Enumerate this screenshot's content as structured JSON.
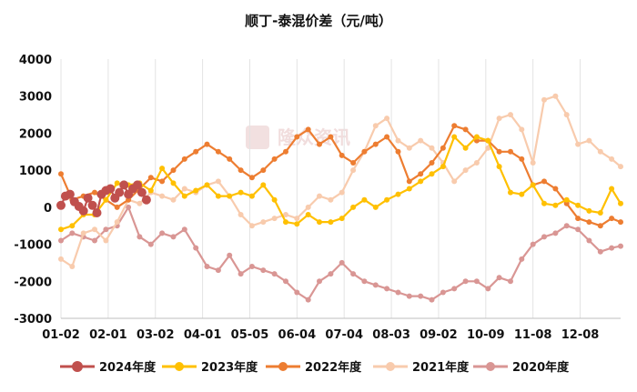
{
  "chart_data": {
    "type": "line",
    "title": "顺丁-泰混价差（元/吨）",
    "xlabel": "",
    "ylabel": "",
    "ylim": [
      -3000,
      4000
    ],
    "yticks": [
      -3000,
      -2000,
      -1000,
      0,
      1000,
      2000,
      3000,
      4000
    ],
    "xticks": [
      "01-02",
      "02-01",
      "03-02",
      "04-01",
      "05-05",
      "06-04",
      "07-04",
      "08-03",
      "09-02",
      "10-09",
      "11-08",
      "12-08"
    ],
    "xtick_index": [
      0,
      21,
      42,
      63,
      84,
      105,
      126,
      147,
      168,
      189,
      210,
      231
    ],
    "x_points": 250,
    "grid": "vertical",
    "legend_position": "bottom",
    "watermark": "隆众资讯",
    "series": [
      {
        "name": "2024年度",
        "color": "#c0504d",
        "marker_size": 5,
        "points": [
          [
            0,
            50
          ],
          [
            2,
            300
          ],
          [
            4,
            350
          ],
          [
            6,
            150
          ],
          [
            8,
            20
          ],
          [
            10,
            -100
          ],
          [
            12,
            250
          ],
          [
            14,
            50
          ],
          [
            16,
            -150
          ],
          [
            18,
            350
          ],
          [
            20,
            450
          ],
          [
            22,
            500
          ],
          [
            24,
            250
          ],
          [
            26,
            400
          ],
          [
            28,
            600
          ],
          [
            30,
            350
          ],
          [
            32,
            500
          ],
          [
            34,
            600
          ],
          [
            36,
            400
          ],
          [
            38,
            200
          ]
        ]
      },
      {
        "name": "2023年度",
        "color": "#ffc000",
        "marker_size": 3,
        "points": [
          [
            0,
            -600
          ],
          [
            5,
            -500
          ],
          [
            10,
            -200
          ],
          [
            15,
            -200
          ],
          [
            20,
            200
          ],
          [
            25,
            650
          ],
          [
            30,
            600
          ],
          [
            35,
            650
          ],
          [
            40,
            450
          ],
          [
            45,
            1050
          ],
          [
            50,
            650
          ],
          [
            55,
            300
          ],
          [
            60,
            450
          ],
          [
            65,
            600
          ],
          [
            70,
            300
          ],
          [
            75,
            300
          ],
          [
            80,
            400
          ],
          [
            85,
            300
          ],
          [
            90,
            600
          ],
          [
            95,
            200
          ],
          [
            100,
            -400
          ],
          [
            105,
            -450
          ],
          [
            110,
            -200
          ],
          [
            115,
            -400
          ],
          [
            120,
            -400
          ],
          [
            125,
            -300
          ],
          [
            130,
            0
          ],
          [
            135,
            200
          ],
          [
            140,
            0
          ],
          [
            145,
            200
          ],
          [
            150,
            350
          ],
          [
            155,
            500
          ],
          [
            160,
            700
          ],
          [
            165,
            900
          ],
          [
            170,
            1100
          ],
          [
            175,
            1900
          ],
          [
            180,
            1600
          ],
          [
            185,
            1900
          ],
          [
            190,
            1800
          ],
          [
            195,
            1100
          ],
          [
            200,
            400
          ],
          [
            205,
            350
          ],
          [
            210,
            600
          ],
          [
            215,
            100
          ],
          [
            220,
            50
          ],
          [
            225,
            200
          ],
          [
            230,
            50
          ],
          [
            235,
            -100
          ],
          [
            240,
            -150
          ],
          [
            245,
            500
          ],
          [
            249,
            100
          ]
        ]
      },
      {
        "name": "2022年度",
        "color": "#ed7d31",
        "marker_size": 3,
        "points": [
          [
            0,
            900
          ],
          [
            5,
            200
          ],
          [
            10,
            300
          ],
          [
            15,
            400
          ],
          [
            20,
            200
          ],
          [
            25,
            0
          ],
          [
            30,
            200
          ],
          [
            35,
            500
          ],
          [
            40,
            800
          ],
          [
            45,
            700
          ],
          [
            50,
            1000
          ],
          [
            55,
            1300
          ],
          [
            60,
            1500
          ],
          [
            65,
            1700
          ],
          [
            70,
            1500
          ],
          [
            75,
            1300
          ],
          [
            80,
            1000
          ],
          [
            85,
            800
          ],
          [
            90,
            1000
          ],
          [
            95,
            1300
          ],
          [
            100,
            1500
          ],
          [
            105,
            1900
          ],
          [
            110,
            2100
          ],
          [
            115,
            1700
          ],
          [
            120,
            1900
          ],
          [
            125,
            1400
          ],
          [
            130,
            1200
          ],
          [
            135,
            1500
          ],
          [
            140,
            1700
          ],
          [
            145,
            1900
          ],
          [
            150,
            1500
          ],
          [
            155,
            700
          ],
          [
            160,
            900
          ],
          [
            165,
            1200
          ],
          [
            170,
            1600
          ],
          [
            175,
            2200
          ],
          [
            180,
            2100
          ],
          [
            185,
            1800
          ],
          [
            190,
            1800
          ],
          [
            195,
            1500
          ],
          [
            200,
            1500
          ],
          [
            205,
            1300
          ],
          [
            210,
            600
          ],
          [
            215,
            700
          ],
          [
            220,
            500
          ],
          [
            225,
            100
          ],
          [
            230,
            -300
          ],
          [
            235,
            -400
          ],
          [
            240,
            -500
          ],
          [
            245,
            -300
          ],
          [
            249,
            -400
          ]
        ]
      },
      {
        "name": "2021年度",
        "color": "#f8cbad",
        "marker_size": 3,
        "points": [
          [
            0,
            -1400
          ],
          [
            5,
            -1600
          ],
          [
            10,
            -700
          ],
          [
            15,
            -600
          ],
          [
            20,
            -900
          ],
          [
            25,
            -400
          ],
          [
            30,
            200
          ],
          [
            35,
            100
          ],
          [
            40,
            400
          ],
          [
            45,
            300
          ],
          [
            50,
            200
          ],
          [
            55,
            500
          ],
          [
            60,
            400
          ],
          [
            65,
            600
          ],
          [
            70,
            700
          ],
          [
            75,
            300
          ],
          [
            80,
            -200
          ],
          [
            85,
            -500
          ],
          [
            90,
            -400
          ],
          [
            95,
            -300
          ],
          [
            100,
            -200
          ],
          [
            105,
            -300
          ],
          [
            110,
            0
          ],
          [
            115,
            300
          ],
          [
            120,
            200
          ],
          [
            125,
            400
          ],
          [
            130,
            1000
          ],
          [
            135,
            1500
          ],
          [
            140,
            2200
          ],
          [
            145,
            2400
          ],
          [
            150,
            1800
          ],
          [
            155,
            1600
          ],
          [
            160,
            1800
          ],
          [
            165,
            1600
          ],
          [
            170,
            1200
          ],
          [
            175,
            700
          ],
          [
            180,
            1000
          ],
          [
            185,
            1200
          ],
          [
            190,
            1600
          ],
          [
            195,
            2400
          ],
          [
            200,
            2500
          ],
          [
            205,
            2100
          ],
          [
            210,
            1200
          ],
          [
            215,
            2900
          ],
          [
            220,
            3000
          ],
          [
            225,
            2500
          ],
          [
            230,
            1700
          ],
          [
            235,
            1800
          ],
          [
            240,
            1500
          ],
          [
            245,
            1300
          ],
          [
            249,
            1100
          ]
        ]
      },
      {
        "name": "2020年度",
        "color": "#d99694",
        "marker_size": 3,
        "points": [
          [
            0,
            -900
          ],
          [
            5,
            -700
          ],
          [
            10,
            -800
          ],
          [
            15,
            -900
          ],
          [
            20,
            -600
          ],
          [
            25,
            -500
          ],
          [
            30,
            0
          ],
          [
            35,
            -800
          ],
          [
            40,
            -1000
          ],
          [
            45,
            -700
          ],
          [
            50,
            -800
          ],
          [
            55,
            -600
          ],
          [
            60,
            -1100
          ],
          [
            65,
            -1600
          ],
          [
            70,
            -1700
          ],
          [
            75,
            -1300
          ],
          [
            80,
            -1800
          ],
          [
            85,
            -1600
          ],
          [
            90,
            -1700
          ],
          [
            95,
            -1800
          ],
          [
            100,
            -2000
          ],
          [
            105,
            -2300
          ],
          [
            110,
            -2500
          ],
          [
            115,
            -2000
          ],
          [
            120,
            -1800
          ],
          [
            125,
            -1500
          ],
          [
            130,
            -1800
          ],
          [
            135,
            -2000
          ],
          [
            140,
            -2100
          ],
          [
            145,
            -2200
          ],
          [
            150,
            -2300
          ],
          [
            155,
            -2400
          ],
          [
            160,
            -2400
          ],
          [
            165,
            -2500
          ],
          [
            170,
            -2300
          ],
          [
            175,
            -2200
          ],
          [
            180,
            -2000
          ],
          [
            185,
            -2000
          ],
          [
            190,
            -2200
          ],
          [
            195,
            -1900
          ],
          [
            200,
            -2000
          ],
          [
            205,
            -1400
          ],
          [
            210,
            -1000
          ],
          [
            215,
            -800
          ],
          [
            220,
            -700
          ],
          [
            225,
            -500
          ],
          [
            230,
            -600
          ],
          [
            235,
            -900
          ],
          [
            240,
            -1200
          ],
          [
            245,
            -1100
          ],
          [
            249,
            -1050
          ]
        ]
      }
    ]
  }
}
